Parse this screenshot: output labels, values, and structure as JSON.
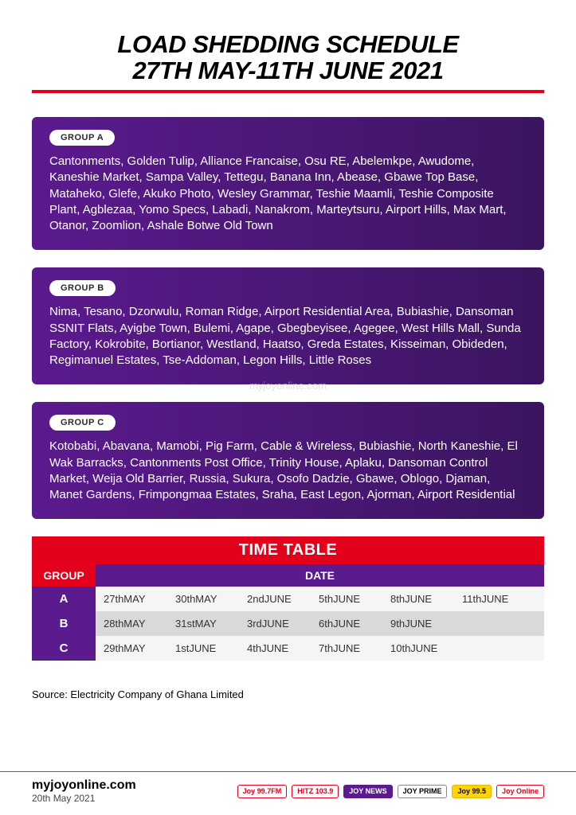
{
  "title": {
    "line1": "LOAD SHEDDING SCHEDULE",
    "line2": "27TH MAY-11TH JUNE 2021",
    "underline_color": "#e2001a",
    "font_style": "italic-black",
    "fontsize": 31
  },
  "groups": [
    {
      "label": "GROUP A",
      "text": "Cantonments, Golden Tulip, Alliance Francaise, Osu RE, Abelemkpe, Awudome, Kaneshie Market, Sampa Valley, Tettegu, Banana Inn, Abease, Gbawe Top Base, Mataheko, Glefe, Akuko Photo, Wesley Grammar, Teshie Maamli, Teshie Composite Plant, Agblezaa, Yomo Specs, Labadi, Nanakrom, Marteytsuru, Airport Hills, Max Mart, Otanor, Zoomlion, Ashale Botwe Old Town"
    },
    {
      "label": "GROUP B",
      "text": "Nima, Tesano, Dzorwulu, Roman Ridge, Airport Residential Area, Bubiashie, Dansoman SSNIT Flats, Ayigbe Town, Bulemi, Agape, Gbegbeyisee, Agegee, West Hills Mall, Sunda Factory, Kokrobite, Bortianor, Westland, Haatso, Greda Estates, Kisseiman, Obideden, Regimanuel Estates, Tse-Addoman, Legon Hills, Little Roses"
    },
    {
      "label": "GROUP C",
      "text": "Kotobabi, Abavana, Mamobi, Pig Farm, Cable & Wireless, Bubiashie, North Kaneshie, El Wak Barracks, Cantonments Post Office, Trinity House, Aplaku, Dansoman Control Market, Weija Old Barrier, Russia, Sukura, Osofo Dadzie, Gbawe, Oblogo, Djaman, Manet Gardens, Frimpongmaa Estates, Sraha, East Legon, Ajorman, Airport Residential"
    }
  ],
  "group_style": {
    "background_gradient": [
      "#5b1a8e",
      "#3b1560"
    ],
    "text_color": "#ffffff",
    "label_bg": "#ffffff",
    "label_color": "#2a2a2a",
    "border_radius": 6,
    "body_fontsize": 15
  },
  "watermark": "myjoyonline.com",
  "timetable": {
    "title": "TIME TABLE",
    "title_bg": "#e2001a",
    "group_header": "GROUP",
    "date_header": "DATE",
    "group_header_bg": "#e2001a",
    "date_header_bg": "#5b1a8e",
    "row_label_bg": "#5b1a8e",
    "row_alt_bg_odd": "#f5f5f5",
    "row_alt_bg_even": "#d9d9d9",
    "rows": [
      {
        "label": "A",
        "dates": [
          "27thMAY",
          "30thMAY",
          "2ndJUNE",
          "5thJUNE",
          "8thJUNE",
          "11thJUNE"
        ]
      },
      {
        "label": "B",
        "dates": [
          "28thMAY",
          "31stMAY",
          "3rdJUNE",
          "6thJUNE",
          "9thJUNE",
          ""
        ]
      },
      {
        "label": "C",
        "dates": [
          "29thMAY",
          "1stJUNE",
          "4thJUNE",
          "7thJUNE",
          "10thJUNE",
          ""
        ]
      }
    ]
  },
  "source": "Source: Electricity Company of Ghana Limited",
  "footer": {
    "site": "myjoyonline.com",
    "date": "20th May 2021",
    "logos": [
      "Joy 99.7FM",
      "HITZ 103.9",
      "JOY NEWS",
      "JOY PRIME",
      "Joy 99.5",
      "Joy Online"
    ]
  },
  "colors": {
    "brand_red": "#e2001a",
    "brand_purple": "#5b1a8e",
    "white": "#ffffff",
    "gray_light": "#f5f5f5",
    "gray_mid": "#d9d9d9"
  }
}
